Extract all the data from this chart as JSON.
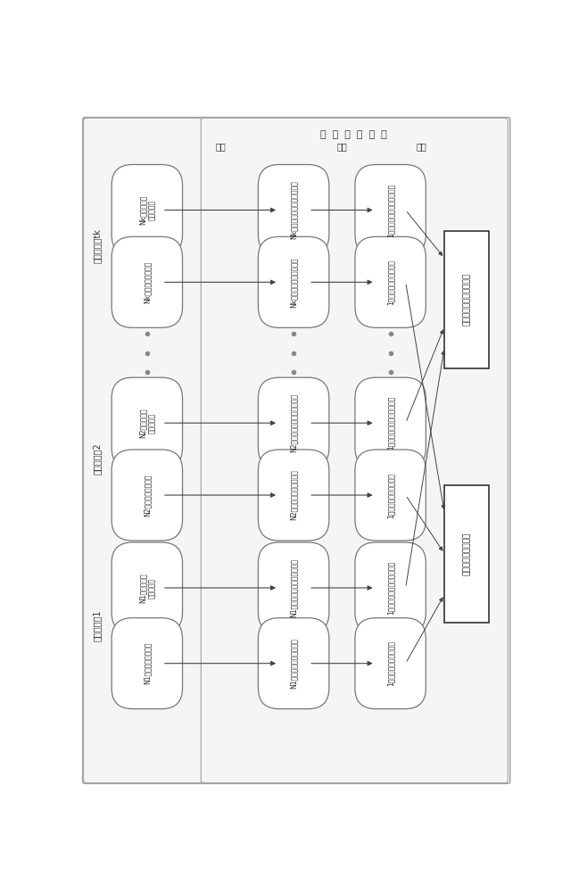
{
  "fig_width": 6.49,
  "fig_height": 10.0,
  "bg_color": "#ffffff",
  "node_fill_color": "#ffffff",
  "node_edge_color": "#666666",
  "arrow_color": "#333333",
  "text_color": "#222222",
  "title_yiwu": "运  维  管  控  系  统",
  "label_k": "源专业系统tk",
  "label_2": "源专业系统2",
  "label_1": "源专业系统1",
  "label_chou": "抽取",
  "label_zhuan": "转换",
  "label_jia": "加载",
  "col1_top": [
    "Nk类监测装置\n实时数据表",
    "Nk张监测装置模型表"
  ],
  "col2_top": [
    "Nk类监测装置实时数据临时表",
    "Nk张监测装置模型临时表"
  ],
  "col3_top": [
    "1张监测装置实时运维数据表",
    "1张监测装置运维模型表"
  ],
  "col1_mid": [
    "N2类监测装置\n实时数据表",
    "N2张监测装置模型表"
  ],
  "col2_mid": [
    "N2类监测装置实时数据临时表",
    "N2张监测装置模型临时表"
  ],
  "col3_mid": [
    "1张监测装置实时运维数据表",
    "1张监测装置运维模型表"
  ],
  "col1_bot": [
    "N1类监测装置\n实时数据表",
    "N1张监测装置模型表"
  ],
  "col2_bot": [
    "N1类监测装置实时数据临时表",
    "N1张监测装置模型临时表"
  ],
  "col3_bot": [
    "1张监测装置实时运维数据表",
    "1张监测装置运维模型表"
  ],
  "rect_top_label": "电网监测装置实时数据表",
  "rect_bot_label": "电网监测装置模型表"
}
